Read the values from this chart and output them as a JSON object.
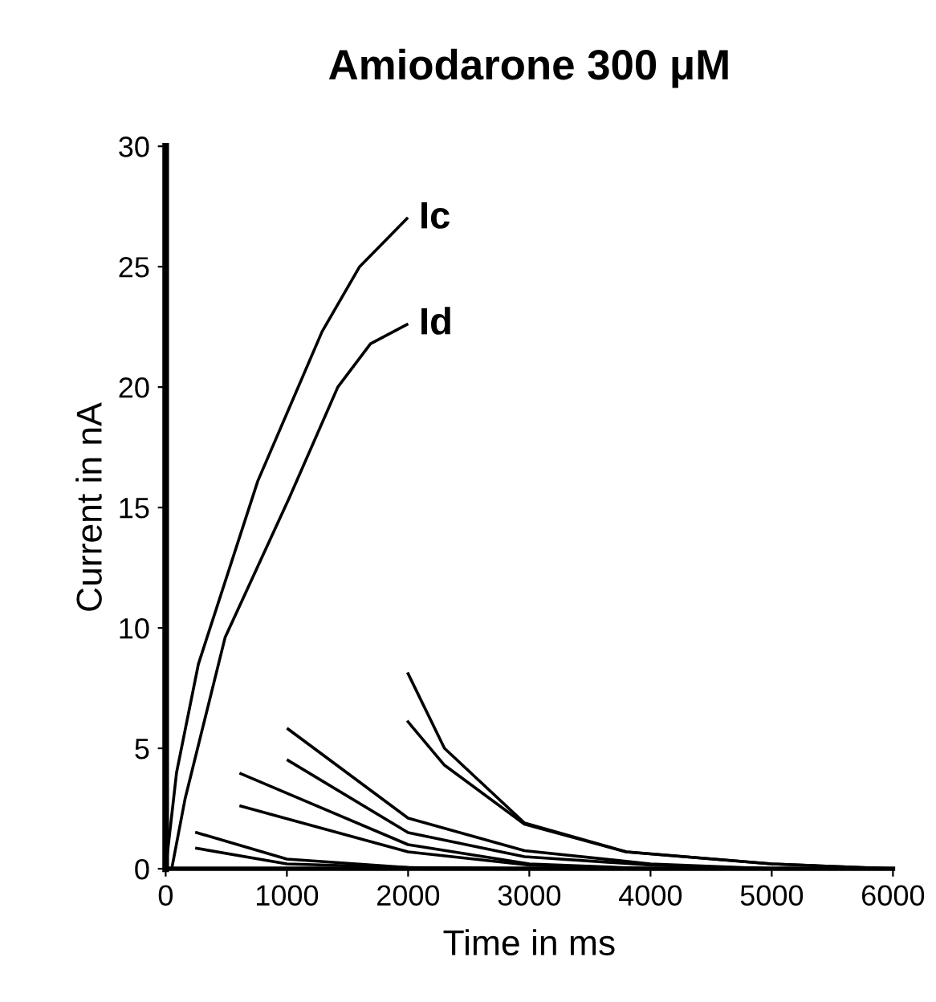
{
  "chart_data": {
    "type": "line",
    "title": "Amiodarone 300 μM",
    "xlabel": "Time in ms",
    "ylabel": "Current in nA",
    "xlim": [
      0,
      6000
    ],
    "ylim": [
      0,
      30
    ],
    "xticks": [
      0,
      1000,
      2000,
      3000,
      4000,
      5000,
      6000
    ],
    "yticks": [
      0,
      5,
      10,
      15,
      20,
      25,
      30
    ],
    "grid": false,
    "legend": false,
    "marker": "none",
    "line_style": "solid",
    "series": [
      {
        "name": "Ic",
        "color": "#000000",
        "x": [
          0,
          90,
          270,
          760,
          1290,
          1600,
          1990
        ],
        "values": [
          0,
          4,
          8.5,
          16.1,
          22.3,
          25,
          27
        ]
      },
      {
        "name": "Id",
        "color": "#000000",
        "x": [
          50,
          160,
          490,
          1020,
          1420,
          1690,
          1990
        ],
        "values": [
          0,
          2.9,
          9.6,
          15.4,
          20,
          21.8,
          22.6
        ]
      },
      {
        "color": "#000000",
        "x": [
          2000,
          2300,
          2960,
          3800,
          5000,
          6000
        ],
        "values": [
          8.1,
          5.0,
          1.9,
          0.7,
          0.2,
          0
        ]
      },
      {
        "color": "#000000",
        "x": [
          2000,
          2300,
          2960,
          3800,
          5000,
          6000
        ],
        "values": [
          6.1,
          4.3,
          1.85,
          0.7,
          0.2,
          0
        ]
      },
      {
        "color": "#000000",
        "x": [
          1010,
          2000,
          2960,
          4000,
          5000
        ],
        "values": [
          5.8,
          2.1,
          0.75,
          0.2,
          0
        ]
      },
      {
        "color": "#000000",
        "x": [
          1010,
          2000,
          2960,
          4000,
          5000
        ],
        "values": [
          4.5,
          1.5,
          0.5,
          0.15,
          0
        ]
      },
      {
        "color": "#000000",
        "x": [
          620,
          2000,
          3000,
          4000
        ],
        "values": [
          3.95,
          1.0,
          0.2,
          0
        ]
      },
      {
        "color": "#000000",
        "x": [
          620,
          2000,
          3000,
          4000
        ],
        "values": [
          2.6,
          0.7,
          0.15,
          0
        ]
      },
      {
        "color": "#000000",
        "x": [
          255,
          1000,
          2000,
          3000
        ],
        "values": [
          1.5,
          0.4,
          0.05,
          0
        ]
      },
      {
        "color": "#000000",
        "x": [
          255,
          1000,
          2000,
          3000
        ],
        "values": [
          0.85,
          0.2,
          0.05,
          0
        ]
      }
    ]
  }
}
